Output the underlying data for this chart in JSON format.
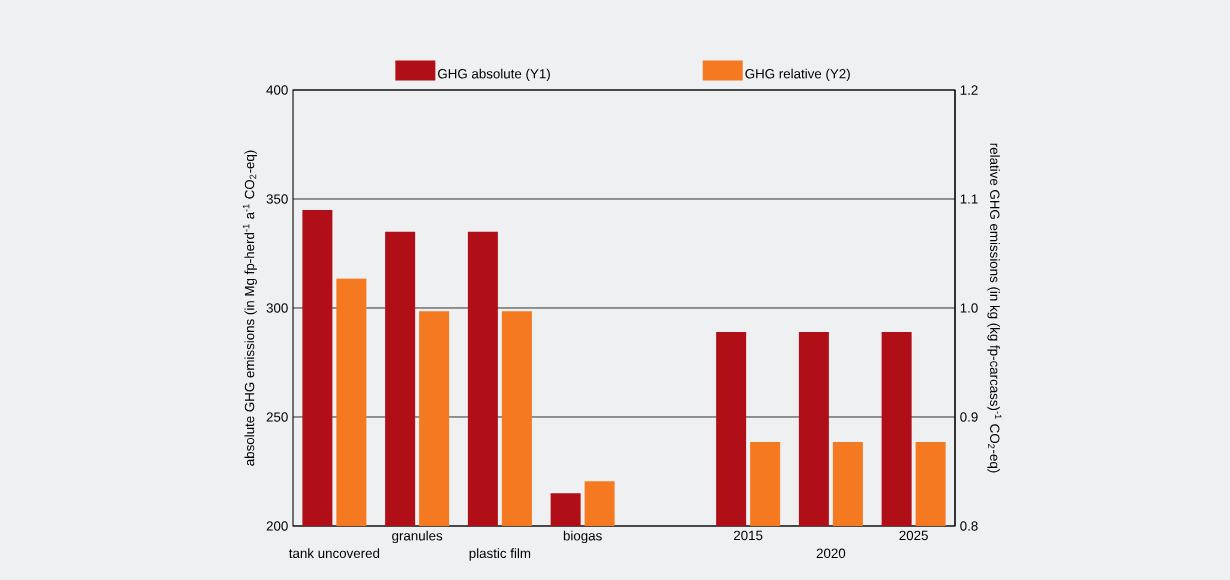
{
  "chart_data": {
    "type": "bar",
    "categories": [
      "tank uncovered",
      "granules",
      "plastic film",
      "biogas",
      null,
      "2015",
      "2020",
      "2025"
    ],
    "series": [
      {
        "name": "GHG absolute (Y1)",
        "color": "#b00f17",
        "axis": "y",
        "values": [
          345,
          335,
          335,
          215,
          null,
          289,
          289,
          289
        ]
      },
      {
        "name": "GHG relative (Y2)",
        "color": "#f47920",
        "axis": "y2",
        "values": [
          1.027,
          0.997,
          0.997,
          0.841,
          null,
          0.877,
          0.877,
          0.877
        ]
      }
    ],
    "ylabel": "absolute GHG emissions (in Mg fp-herd$^{-1}$ a$^{-1}$ CO$_{2}$-eq)",
    "y2label": "relative GHG emissions (in kg (kg fp-carcass)$^{-1}$ CO$_{2}$-eq)",
    "ylim": [
      200,
      400
    ],
    "yticks": [
      200,
      250,
      300,
      350,
      400
    ],
    "y2lim": [
      0.8,
      1.2
    ],
    "y2ticks": [
      {
        "value": 0.8,
        "label": "0.8"
      },
      {
        "value": 0.9,
        "label": "0.9"
      },
      {
        "value": 1.0,
        "label": "1.0"
      },
      {
        "value": 1.1,
        "label": "1.1"
      },
      {
        "value": 1.2,
        "label": "1.2"
      }
    ],
    "grid": "y",
    "legend": "top"
  }
}
